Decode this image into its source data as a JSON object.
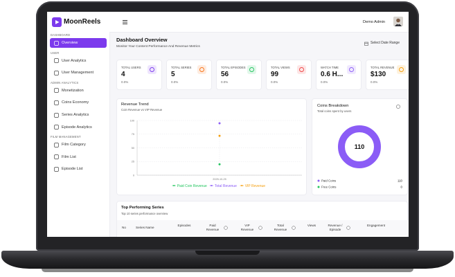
{
  "brand": "MoonReels",
  "header": {
    "user": "Demo Admin"
  },
  "sidebar": [
    {
      "label": "DASHBOARD",
      "items": [
        "Overview"
      ]
    },
    {
      "label": "USER",
      "items": [
        "User Analytics",
        "User Management"
      ]
    },
    {
      "label": "ADMIN ANALYTICS",
      "items": [
        "Monetization",
        "Coins Economy",
        "Series Analytics",
        "Episode Analytics"
      ]
    },
    {
      "label": "FILM MANAGEMENT",
      "items": [
        "Film Category",
        "Film List",
        "Episode List"
      ]
    }
  ],
  "page": {
    "title": "Dashboard Overview",
    "subtitle": "Monitor Your Content Performance And Revenue Metrics",
    "date_button": "Select Date Range"
  },
  "stats": [
    {
      "label": "TOTAL USERS",
      "value": "4",
      "change": "0.0%",
      "color": "#7c3aed"
    },
    {
      "label": "TOTAL SERIES",
      "value": "5",
      "change": "0.0%",
      "color": "#f97316"
    },
    {
      "label": "TOTAL EPISODES",
      "value": "56",
      "change": "0.0%",
      "color": "#22c55e"
    },
    {
      "label": "TOTAL VIEWS",
      "value": "99",
      "change": "0.0%",
      "color": "#ef4444"
    },
    {
      "label": "WATCH TIME",
      "value": "0.6 H...",
      "change": "0.0%",
      "color": "#8b5cf6"
    },
    {
      "label": "TOTAL REVENUE",
      "value": "$130",
      "change": "0.0%",
      "color": "#f59e0b"
    }
  ],
  "revenue_trend": {
    "type": "line",
    "title": "Revenue Trend",
    "subtitle": "Coin Revenue vs VIP Revenue",
    "x": [
      "2025-10-25"
    ],
    "ylim": [
      0,
      100
    ],
    "yticks": [
      0,
      25,
      50,
      75,
      100
    ],
    "grid": true,
    "series": [
      {
        "name": "Paid Coin Revenue",
        "color": "#22c55e",
        "values": [
          20
        ]
      },
      {
        "name": "Total Revenue",
        "color": "#8b5cf6",
        "values": [
          95
        ]
      },
      {
        "name": "VIP Revenue",
        "color": "#f59e0b",
        "values": [
          72
        ]
      }
    ]
  },
  "coins_breakdown": {
    "type": "pie",
    "title": "Coins Breakdown",
    "subtitle": "Total coins spent by users",
    "total": 110,
    "categories": [
      "Paid Coins",
      "Free Coins"
    ],
    "values": [
      110,
      0
    ],
    "colors": [
      "#8b5cf6",
      "#22c55e"
    ]
  },
  "table": {
    "title": "Top Performing Series",
    "subtitle": "Top 10 series performance overview",
    "columns": [
      "No",
      "Series Name",
      "Episodes",
      "Paid Revenue",
      "VIP Revenue",
      "Total Revenue",
      "Views",
      "Revenue / Episode",
      "Engagement"
    ]
  }
}
